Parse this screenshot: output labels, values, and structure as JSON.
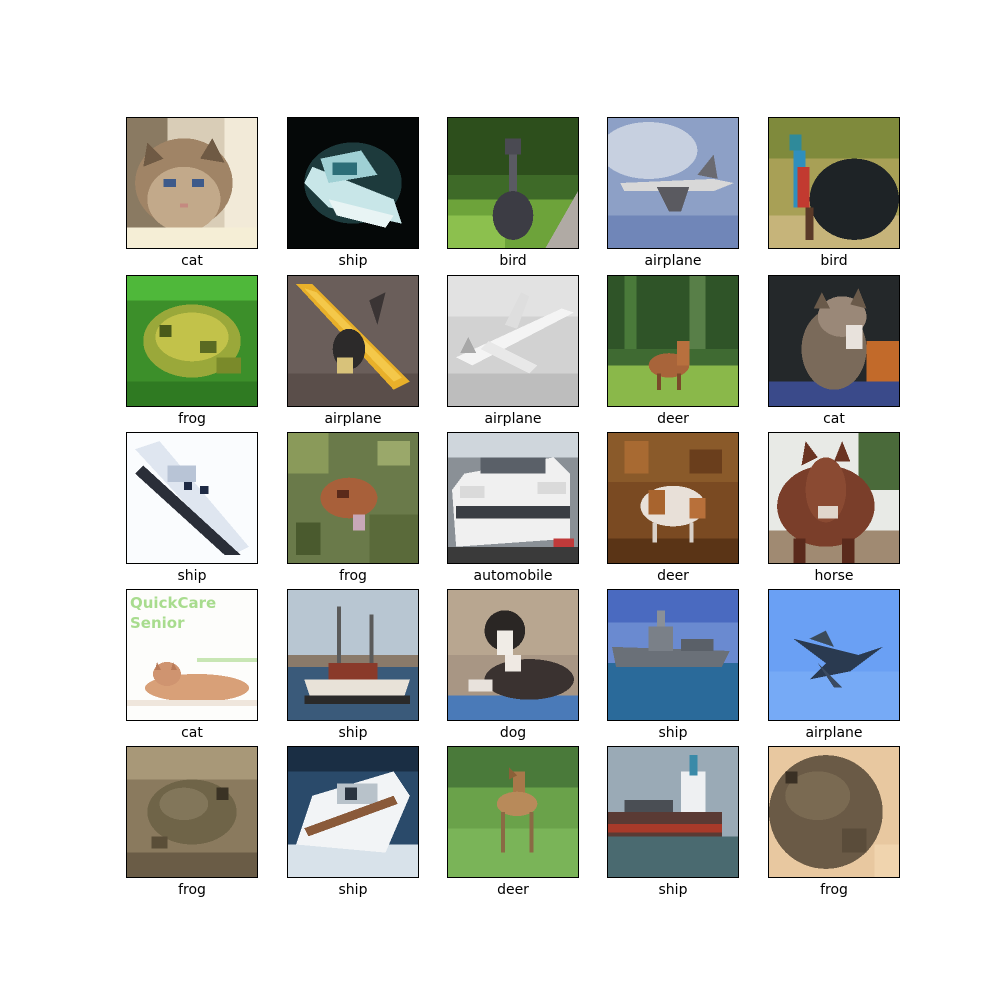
{
  "figure": {
    "images": [
      {
        "label": "cat",
        "subject": "kitten-photo"
      },
      {
        "label": "ship",
        "subject": "boat-photo"
      },
      {
        "label": "bird",
        "subject": "ostrich-photo"
      },
      {
        "label": "airplane",
        "subject": "jet-sky-photo"
      },
      {
        "label": "bird",
        "subject": "cassowary-photo"
      },
      {
        "label": "frog",
        "subject": "green-frog-photo"
      },
      {
        "label": "airplane",
        "subject": "yellow-plane-photo"
      },
      {
        "label": "airplane",
        "subject": "grey-airliner-photo"
      },
      {
        "label": "deer",
        "subject": "deer-forest-photo"
      },
      {
        "label": "cat",
        "subject": "cat-dark-photo"
      },
      {
        "label": "ship",
        "subject": "white-boat-photo"
      },
      {
        "label": "frog",
        "subject": "frog-leaves-photo"
      },
      {
        "label": "automobile",
        "subject": "white-car-photo"
      },
      {
        "label": "deer",
        "subject": "deer-brown-photo"
      },
      {
        "label": "horse",
        "subject": "horse-photo"
      },
      {
        "label": "cat",
        "subject": "cat-ad-photo",
        "overlay_text": [
          "QuickCare",
          "Senior"
        ]
      },
      {
        "label": "ship",
        "subject": "harbor-boat-photo"
      },
      {
        "label": "dog",
        "subject": "dog-lying-photo"
      },
      {
        "label": "ship",
        "subject": "warship-photo"
      },
      {
        "label": "airplane",
        "subject": "jet-blue-sky-photo"
      },
      {
        "label": "frog",
        "subject": "brown-toad-photo"
      },
      {
        "label": "ship",
        "subject": "speedboat-photo"
      },
      {
        "label": "deer",
        "subject": "fawn-grass-photo"
      },
      {
        "label": "ship",
        "subject": "cargo-ship-photo"
      },
      {
        "label": "frog",
        "subject": "toad-closeup-photo"
      }
    ]
  }
}
